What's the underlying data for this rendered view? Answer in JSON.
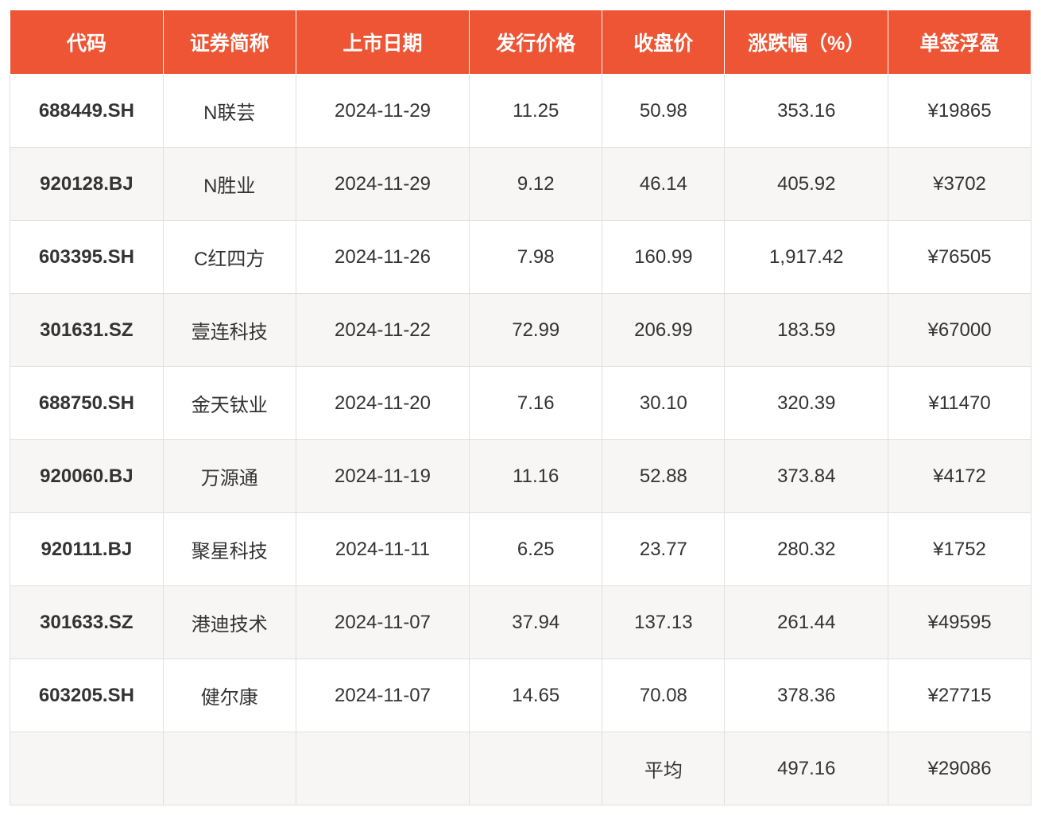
{
  "stock_table": {
    "type": "table",
    "header_bg": "#ed5534",
    "header_fg": "#ffffff",
    "row_odd_bg": "#ffffff",
    "row_even_bg": "#f7f6f4",
    "text_color": "#333333",
    "border_color": "#e0e0e0",
    "font_size": 24,
    "header_font_size": 25,
    "columns": [
      {
        "key": "code",
        "label": "代码",
        "width_pct": 15
      },
      {
        "key": "name",
        "label": "证券简称",
        "width_pct": 13
      },
      {
        "key": "date",
        "label": "上市日期",
        "width_pct": 17
      },
      {
        "key": "issue",
        "label": "发行价格",
        "width_pct": 13
      },
      {
        "key": "close",
        "label": "收盘价",
        "width_pct": 12
      },
      {
        "key": "chg",
        "label": "涨跌幅（%）",
        "width_pct": 16
      },
      {
        "key": "profit",
        "label": "单签浮盈",
        "width_pct": 14
      }
    ],
    "rows": [
      {
        "code": "688449.SH",
        "name": "N联芸",
        "date": "2024-11-29",
        "issue": "11.25",
        "close": "50.98",
        "chg": "353.16",
        "profit": "¥19865"
      },
      {
        "code": "920128.BJ",
        "name": "N胜业",
        "date": "2024-11-29",
        "issue": "9.12",
        "close": "46.14",
        "chg": "405.92",
        "profit": "¥3702"
      },
      {
        "code": "603395.SH",
        "name": "C红四方",
        "date": "2024-11-26",
        "issue": "7.98",
        "close": "160.99",
        "chg": "1,917.42",
        "profit": "¥76505"
      },
      {
        "code": "301631.SZ",
        "name": "壹连科技",
        "date": "2024-11-22",
        "issue": "72.99",
        "close": "206.99",
        "chg": "183.59",
        "profit": "¥67000"
      },
      {
        "code": "688750.SH",
        "name": "金天钛业",
        "date": "2024-11-20",
        "issue": "7.16",
        "close": "30.10",
        "chg": "320.39",
        "profit": "¥11470"
      },
      {
        "code": "920060.BJ",
        "name": "万源通",
        "date": "2024-11-19",
        "issue": "11.16",
        "close": "52.88",
        "chg": "373.84",
        "profit": "¥4172"
      },
      {
        "code": "920111.BJ",
        "name": "聚星科技",
        "date": "2024-11-11",
        "issue": "6.25",
        "close": "23.77",
        "chg": "280.32",
        "profit": "¥1752"
      },
      {
        "code": "301633.SZ",
        "name": "港迪技术",
        "date": "2024-11-07",
        "issue": "37.94",
        "close": "137.13",
        "chg": "261.44",
        "profit": "¥49595"
      },
      {
        "code": "603205.SH",
        "name": "健尔康",
        "date": "2024-11-07",
        "issue": "14.65",
        "close": "70.08",
        "chg": "378.36",
        "profit": "¥27715"
      }
    ],
    "summary": {
      "label": "平均",
      "chg": "497.16",
      "profit": "¥29086"
    }
  }
}
